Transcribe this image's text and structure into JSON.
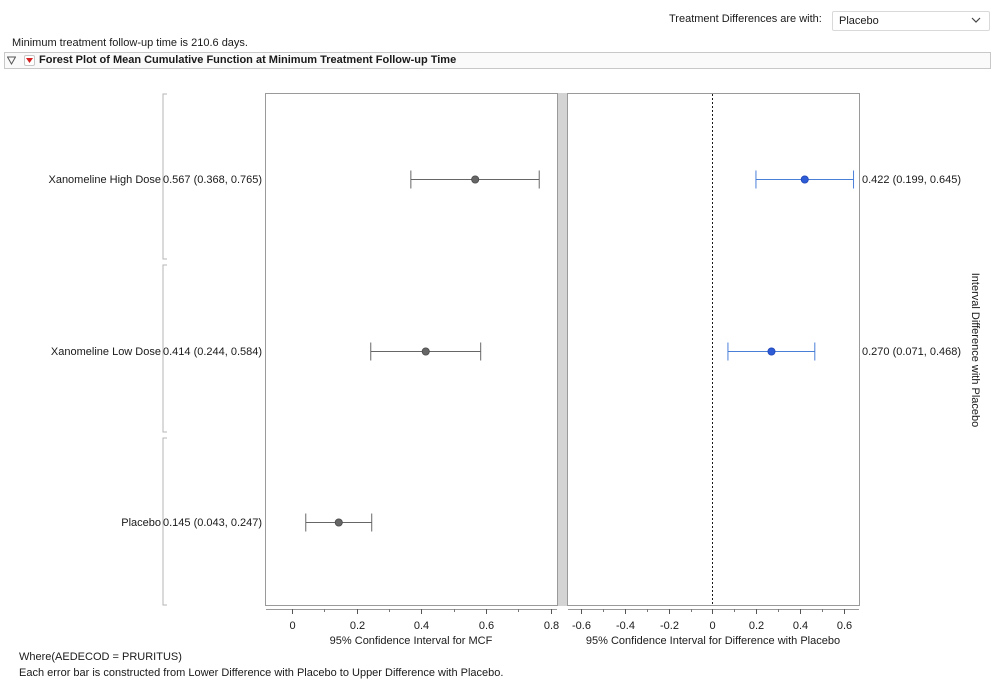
{
  "header": {
    "selector_label": "Treatment Differences are with:",
    "selector_value": "Placebo",
    "follow_up_text": "Minimum treatment follow-up time is 210.6 days.",
    "outline_title": "Forest Plot of Mean Cumulative Function at Minimum Treatment Follow-up Time"
  },
  "chart_data": [
    {
      "type": "forest",
      "categories": [
        "Xanomeline High Dose",
        "Xanomeline Low Dose",
        "Placebo"
      ],
      "row_labels": [
        "0.567 (0.368, 0.765)",
        "0.414 (0.244, 0.584)",
        "0.145 (0.043, 0.247)"
      ],
      "estimates": [
        0.567,
        0.414,
        0.145
      ],
      "lower": [
        0.368,
        0.244,
        0.043
      ],
      "upper": [
        0.765,
        0.584,
        0.247
      ],
      "xlabel": "95% Confidence Interval for MCF",
      "xlim": [
        -0.08,
        0.82
      ],
      "xticks": [
        0,
        0.2,
        0.4,
        0.6,
        0.8
      ],
      "tick_labels": [
        "0",
        "0.2",
        "0.4",
        "0.6",
        "0.8"
      ],
      "marker_color": "#666666",
      "bar_color": "#666666"
    },
    {
      "type": "forest",
      "categories": [
        "Xanomeline High Dose",
        "Xanomeline Low Dose",
        "Placebo"
      ],
      "row_labels": [
        "0.422 (0.199, 0.645)",
        "0.270 (0.071, 0.468)",
        ""
      ],
      "estimates": [
        0.422,
        0.27,
        null
      ],
      "lower": [
        0.199,
        0.071,
        null
      ],
      "upper": [
        0.645,
        0.468,
        null
      ],
      "xlabel": "95% Confidence Interval for Difference with Placebo",
      "ylabel": "Interval Difference with Placebo",
      "xlim": [
        -0.66,
        0.67
      ],
      "xticks": [
        -0.6,
        -0.4,
        -0.2,
        0,
        0.2,
        0.4,
        0.6
      ],
      "tick_labels": [
        "-0.6",
        "-0.4",
        "-0.2",
        "0",
        "0.2",
        "0.4",
        "0.6"
      ],
      "reference_line": 0,
      "marker_color": "#2e5bd6",
      "bar_color": "#4a7fd8"
    }
  ],
  "footer": {
    "where_text": "Where(AEDECOD = PRURITUS)",
    "note_text": "Each error bar is constructed from Lower Difference with Placebo to Upper Difference with Placebo."
  },
  "colors": {
    "panel_border": "#9a9a9a",
    "divider": "#d4d4d4",
    "bracket": "#b5b5b5"
  }
}
